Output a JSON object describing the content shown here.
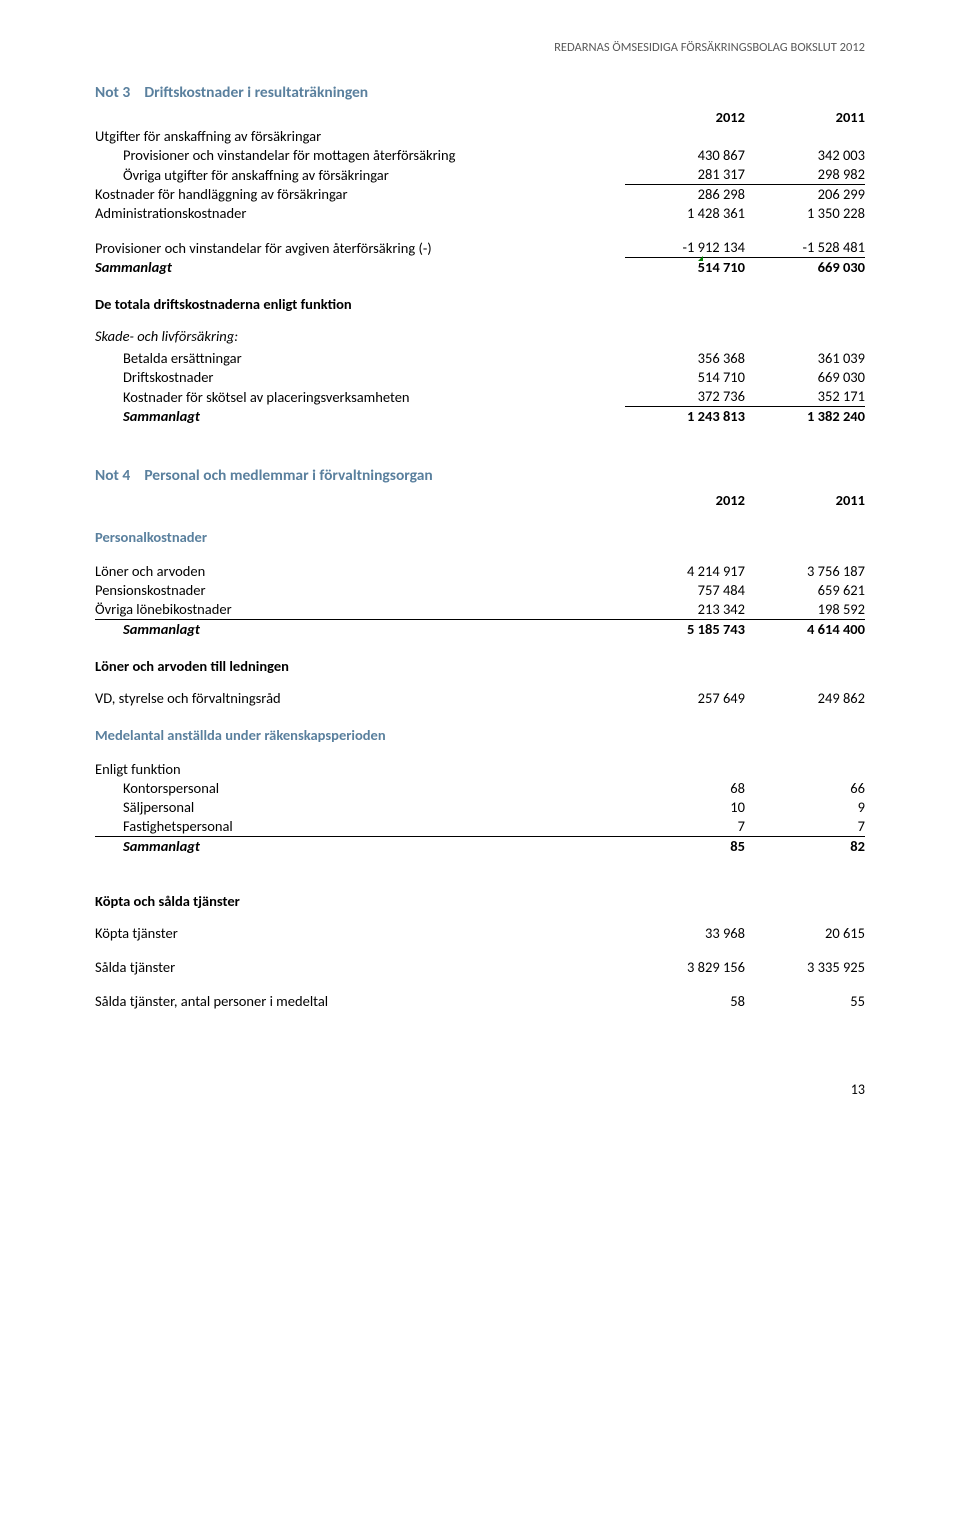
{
  "header": "REDARNAS ÖMSESIDIGA FÖRSÄKRINGSBOLAG BOKSLUT 2012",
  "note3": {
    "title_prefix": "Not 3",
    "title": "Driftskostnader i resultaträkningen",
    "year1": "2012",
    "year2": "2011",
    "rows": [
      {
        "label": "Utgifter för anskaffning av försäkringar"
      },
      {
        "label": "Provisioner och vinstandelar för mottagen återförsäkring",
        "v1": "430 867",
        "v2": "342 003",
        "indent": true
      },
      {
        "label": "Övriga utgifter för anskaffning av försäkringar",
        "v1": "281 317",
        "v2": "298 982",
        "indent": true,
        "underline": true
      },
      {
        "label": "Kostnader för handläggning av försäkringar",
        "v1": "286 298",
        "v2": "206 299"
      },
      {
        "label": "Administrationskostnader",
        "v1": "1 428 361",
        "v2": "1 350 228"
      },
      {
        "blank": true
      },
      {
        "label": "Provisioner och vinstandelar för avgiven återförsäkring (-)",
        "v1": "-1 912 134",
        "v2": "-1 528 481",
        "underline": true
      },
      {
        "label": "Sammanlagt",
        "v1": "514 710",
        "v2": "669 030",
        "sammanlagt": true,
        "tick": true
      }
    ],
    "sub1_title": "De totala driftskostnaderna enligt funktion",
    "sub2_title": "Skade- och livförsäkring:",
    "rows2": [
      {
        "label": "Betalda ersättningar",
        "v1": "356 368",
        "v2": "361 039",
        "indent": true
      },
      {
        "label": "Driftskostnader",
        "v1": "514 710",
        "v2": "669 030",
        "indent": true
      },
      {
        "label": "Kostnader för skötsel av placeringsverksamheten",
        "v1": "372 736",
        "v2": "352 171",
        "indent": true,
        "underline": true
      },
      {
        "label": "Sammanlagt",
        "v1": "1 243 813",
        "v2": "1 382 240",
        "sammanlagt": true,
        "indent": true
      }
    ]
  },
  "note4": {
    "title_prefix": "Not 4",
    "title": "Personal och medlemmar i förvaltningsorgan",
    "year1": "2012",
    "year2": "2011",
    "sub_pk": "Personalkostnader",
    "rows_pk": [
      {
        "label": "Löner och arvoden",
        "v1": "4 214 917",
        "v2": "3 756 187"
      },
      {
        "label": "Pensionskostnader",
        "v1": "757 484",
        "v2": "659 621"
      },
      {
        "label": "Övriga lönebikostnader",
        "v1": "213 342",
        "v2": "198 592",
        "underline_all": true
      },
      {
        "label": "Sammanlagt",
        "v1": "5 185 743",
        "v2": "4 614 400",
        "sammanlagt": true,
        "indent": true
      }
    ],
    "sub_ledn": "Löner och arvoden till ledningen",
    "rows_ledn": [
      {
        "label": "VD, styrelse och förvaltningsråd",
        "v1": "257 649",
        "v2": "249 862"
      }
    ],
    "sub_medel": "Medelantal anställda under räkenskapsperioden",
    "rows_medel_h": "Enligt funktion",
    "rows_medel": [
      {
        "label": "Kontorspersonal",
        "v1": "68",
        "v2": "66",
        "indent": true
      },
      {
        "label": "Säljpersonal",
        "v1": "10",
        "v2": "9",
        "indent": true
      },
      {
        "label": "Fastighetspersonal",
        "v1": "7",
        "v2": "7",
        "indent": true,
        "underline_all": true
      },
      {
        "label": "Sammanlagt",
        "v1": "85",
        "v2": "82",
        "sammanlagt": true,
        "indent": true
      }
    ],
    "sub_kopta": "Köpta och sålda tjänster",
    "rows_kopta": [
      {
        "label": "Köpta tjänster",
        "v1": "33 968",
        "v2": "20 615"
      },
      {
        "blank": true
      },
      {
        "label": "Sålda tjänster",
        "v1": "3 829 156",
        "v2": "3 335 925"
      },
      {
        "blank": true
      },
      {
        "label": "Sålda tjänster, antal personer i medeltal",
        "v1": "58",
        "v2": "55"
      }
    ]
  },
  "pagenum": "13"
}
